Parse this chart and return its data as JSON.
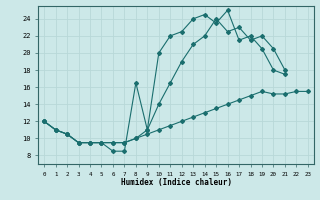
{
  "xlabel": "Humidex (Indice chaleur)",
  "bg_color": "#cce8e8",
  "grid_color": "#b8d8d8",
  "line_color": "#1a6e6e",
  "xlim": [
    -0.5,
    23.5
  ],
  "ylim": [
    7,
    25.5
  ],
  "xticks": [
    0,
    1,
    2,
    3,
    4,
    5,
    6,
    7,
    8,
    9,
    10,
    11,
    12,
    13,
    14,
    15,
    16,
    17,
    18,
    19,
    20,
    21,
    22,
    23
  ],
  "yticks": [
    8,
    10,
    12,
    14,
    16,
    18,
    20,
    22,
    24
  ],
  "line1_x": [
    0,
    1,
    2,
    3,
    4,
    5,
    6,
    7,
    8,
    9,
    10,
    11,
    12,
    13,
    14,
    15,
    16,
    17,
    18,
    19,
    20,
    21
  ],
  "line1_y": [
    12,
    11,
    10.5,
    9.5,
    9.5,
    9.5,
    8.5,
    8.5,
    16.5,
    11,
    20,
    22,
    22.5,
    24,
    24.5,
    23.5,
    25,
    21.5,
    22,
    20.5,
    18,
    17.5
  ],
  "line2_x": [
    0,
    1,
    2,
    3,
    4,
    5,
    6,
    7,
    8,
    9,
    10,
    11,
    12,
    13,
    14,
    15,
    16,
    17,
    18,
    19,
    20,
    21
  ],
  "line2_y": [
    12,
    11,
    10.5,
    9.5,
    9.5,
    9.5,
    9.5,
    9.5,
    10,
    11,
    14,
    16.5,
    19,
    21,
    22,
    24,
    22.5,
    23,
    21.5,
    22,
    20.5,
    18
  ],
  "line3_x": [
    0,
    1,
    2,
    3,
    4,
    5,
    6,
    7,
    8,
    9,
    10,
    11,
    12,
    13,
    14,
    15,
    16,
    17,
    18,
    19,
    20,
    21,
    22,
    23
  ],
  "line3_y": [
    12,
    11,
    10.5,
    9.5,
    9.5,
    9.5,
    9.5,
    9.5,
    10,
    10.5,
    11,
    11.5,
    12,
    12.5,
    13,
    13.5,
    14,
    14.5,
    15,
    15.5,
    15.2,
    15.2,
    15.5,
    15.5
  ]
}
